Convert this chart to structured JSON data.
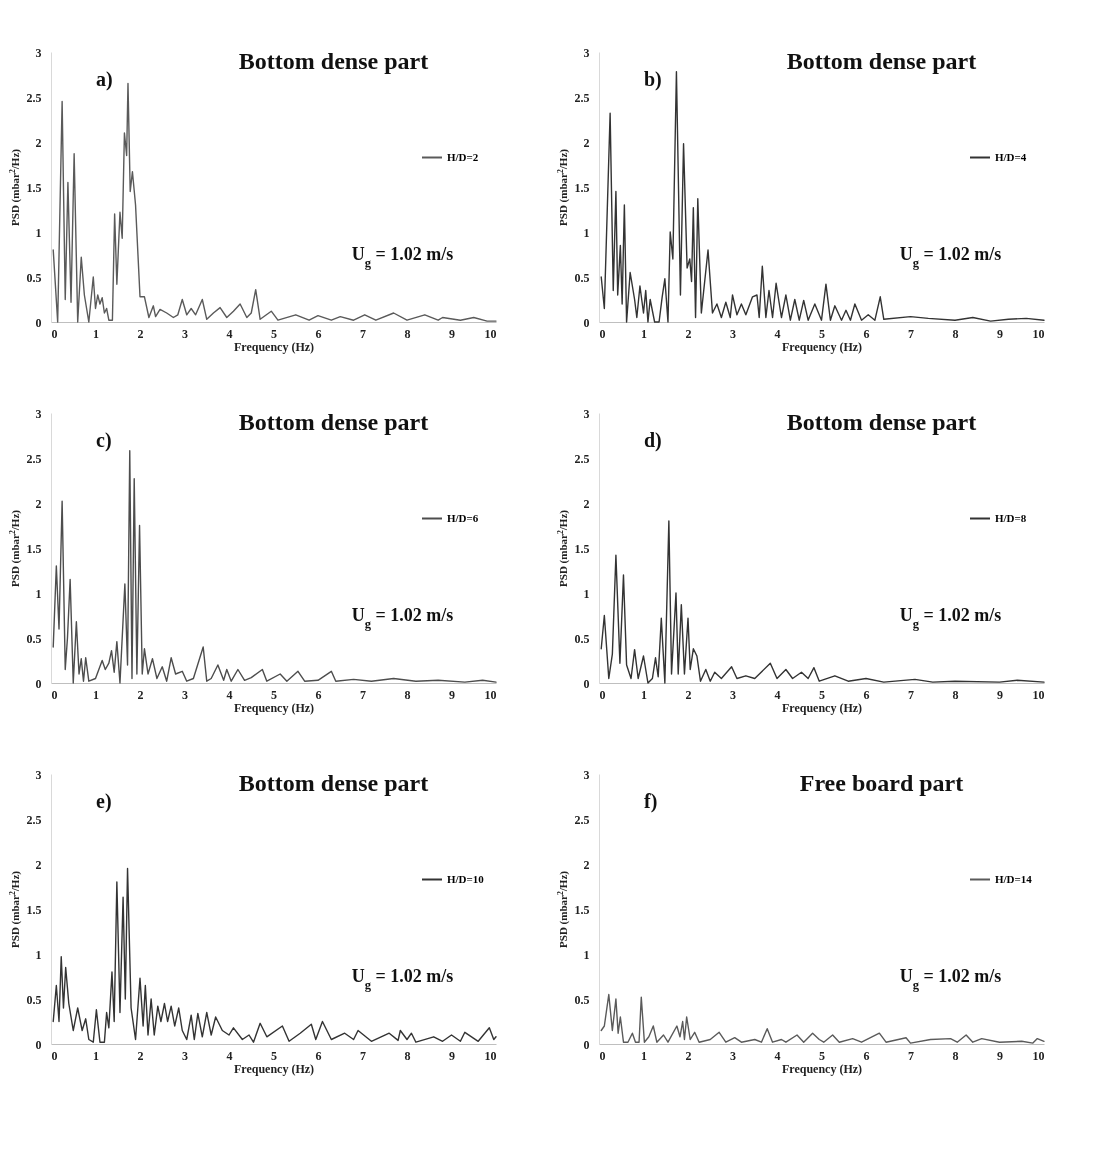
{
  "chart_data": [
    {
      "type": "line",
      "title": "Bottom dense part",
      "annotations": [
        "a)",
        "U$_{g}$ = 1.02 m/s"
      ],
      "xlabel": "Frequency (Hz)",
      "ylabel": "PSD (mbar$^{2}$/Hz)",
      "xlim": [
        0,
        10
      ],
      "xticks": [
        0,
        1,
        2,
        3,
        4,
        5,
        6,
        7,
        8,
        9,
        10
      ],
      "ylim": [
        0,
        3
      ],
      "yticks": [
        0,
        {
          "value": 0.5,
          "label": "0.5"
        },
        1,
        {
          "value": 1.5,
          "label": "1.5"
        },
        2,
        {
          "value": 2.5,
          "label": "2.5"
        },
        3
      ],
      "grid": false,
      "legend": "right",
      "series": [
        {
          "name": "H/D=2",
          "color": "#5a5a5a",
          "x": [
            0.05,
            0.15,
            0.25,
            0.32,
            0.38,
            0.45,
            0.52,
            0.6,
            0.68,
            0.75,
            0.85,
            0.95,
            1.0,
            1.05,
            1.1,
            1.15,
            1.2,
            1.25,
            1.3,
            1.38,
            1.43,
            1.48,
            1.55,
            1.6,
            1.65,
            1.7,
            1.73,
            1.78,
            1.83,
            1.9,
            2.0,
            2.1,
            2.2,
            2.3,
            2.35,
            2.45,
            2.6,
            2.75,
            2.85,
            2.95,
            3.05,
            3.15,
            3.25,
            3.4,
            3.5,
            3.65,
            3.8,
            3.95,
            4.1,
            4.25,
            4.4,
            4.5,
            4.6,
            4.7,
            4.95,
            5.1,
            5.5,
            5.8,
            6.0,
            6.3,
            6.5,
            6.8,
            7.05,
            7.3,
            7.7,
            8.0,
            8.4,
            8.7,
            8.8,
            9.2,
            9.5,
            9.8,
            10
          ],
          "values": [
            0.8,
            0,
            2.45,
            0.25,
            1.55,
            0.22,
            1.87,
            0,
            0.72,
            0.3,
            0,
            0.5,
            0.15,
            0.3,
            0.2,
            0.27,
            0.1,
            0.15,
            0.02,
            0.02,
            1.2,
            0.42,
            1.22,
            0.93,
            2.1,
            1.85,
            2.65,
            1.45,
            1.67,
            1.3,
            0.28,
            0.28,
            0.05,
            0.18,
            0.06,
            0.14,
            0.1,
            0.05,
            0.08,
            0.25,
            0.08,
            0.15,
            0.08,
            0.25,
            0.03,
            0.1,
            0.16,
            0.05,
            0.12,
            0.2,
            0.05,
            0.1,
            0.36,
            0.03,
            0.12,
            0.02,
            0.08,
            0.02,
            0.07,
            0.02,
            0.06,
            0.02,
            0.08,
            0.02,
            0.1,
            0.02,
            0.08,
            0.02,
            0.05,
            0.02,
            0.05,
            0.01,
            0.01
          ]
        }
      ]
    },
    {
      "type": "line",
      "title": "Bottom dense part",
      "annotations": [
        "b)",
        "U$_{g}$ = 1.02 m/s"
      ],
      "xlabel": "Frequency (Hz)",
      "ylabel": "PSD (mbar$^{2}$/Hz)",
      "xlim": [
        0,
        10
      ],
      "xticks": [
        0,
        1,
        2,
        3,
        4,
        5,
        6,
        7,
        8,
        9,
        10
      ],
      "ylim": [
        0,
        3
      ],
      "yticks": [
        0,
        {
          "value": 0.5,
          "label": "0.5"
        },
        1,
        {
          "value": 1.5,
          "label": "1.5"
        },
        2,
        {
          "value": 2.5,
          "label": "2.5"
        },
        3
      ],
      "grid": false,
      "legend": "right",
      "series": [
        {
          "name": "H/D=4",
          "color": "#333333",
          "x": [
            0.05,
            0.12,
            0.25,
            0.32,
            0.38,
            0.42,
            0.48,
            0.52,
            0.57,
            0.62,
            0.7,
            0.8,
            0.85,
            0.92,
            1.0,
            1.05,
            1.1,
            1.15,
            1.25,
            1.35,
            1.42,
            1.48,
            1.55,
            1.6,
            1.66,
            1.74,
            1.83,
            1.9,
            1.98,
            2.04,
            2.08,
            2.12,
            2.17,
            2.22,
            2.3,
            2.45,
            2.55,
            2.65,
            2.75,
            2.85,
            2.95,
            3.0,
            3.1,
            3.2,
            3.3,
            3.45,
            3.55,
            3.6,
            3.67,
            3.75,
            3.82,
            3.9,
            3.98,
            4.1,
            4.2,
            4.3,
            4.4,
            4.5,
            4.6,
            4.7,
            4.85,
            5.0,
            5.1,
            5.2,
            5.3,
            5.45,
            5.55,
            5.65,
            5.75,
            5.9,
            6.05,
            6.2,
            6.32,
            6.4,
            7.0,
            7.4,
            8.0,
            8.4,
            8.8,
            9.2,
            9.6,
            10
          ],
          "values": [
            0.5,
            0.15,
            2.32,
            0.35,
            1.45,
            0.3,
            0.85,
            0.2,
            1.3,
            0,
            0.55,
            0.25,
            0.05,
            0.4,
            0.1,
            0.35,
            0,
            0.25,
            0,
            0,
            0.28,
            0.48,
            0,
            1.0,
            0.7,
            2.78,
            0.3,
            1.98,
            0.6,
            0.7,
            0.45,
            1.27,
            0.05,
            1.37,
            0.1,
            0.8,
            0.1,
            0.2,
            0.05,
            0.22,
            0.05,
            0.3,
            0.08,
            0.2,
            0.08,
            0.28,
            0.3,
            0.05,
            0.62,
            0.05,
            0.35,
            0.05,
            0.43,
            0.05,
            0.3,
            0.02,
            0.25,
            0.02,
            0.24,
            0.02,
            0.2,
            0.02,
            0.42,
            0.02,
            0.18,
            0.02,
            0.13,
            0.02,
            0.2,
            0.02,
            0.08,
            0.02,
            0.28,
            0.03,
            0.06,
            0.04,
            0.02,
            0.05,
            0.01,
            0.03,
            0.04,
            0.02
          ]
        }
      ]
    },
    {
      "type": "line",
      "title": "Bottom dense part",
      "annotations": [
        "c)",
        "U$_{g}$ = 1.02 m/s"
      ],
      "xlabel": "Frequency (Hz)",
      "ylabel": "PSD (mbar$^{2}$/Hz)",
      "xlim": [
        0,
        10
      ],
      "xticks": [
        0,
        1,
        2,
        3,
        4,
        5,
        6,
        7,
        8,
        9,
        10
      ],
      "ylim": [
        0,
        3
      ],
      "yticks": [
        0,
        {
          "value": 0.5,
          "label": "0.5"
        },
        1,
        {
          "value": 1.5,
          "label": "1.5"
        },
        2,
        {
          "value": 2.5,
          "label": "2.5"
        },
        3
      ],
      "grid": false,
      "legend": "right",
      "series": [
        {
          "name": "H/D=6",
          "color": "#4d4d4d",
          "x": [
            0.05,
            0.12,
            0.18,
            0.25,
            0.32,
            0.37,
            0.43,
            0.5,
            0.57,
            0.63,
            0.68,
            0.73,
            0.78,
            0.85,
            1.0,
            1.15,
            1.22,
            1.3,
            1.36,
            1.42,
            1.48,
            1.55,
            1.66,
            1.72,
            1.77,
            1.82,
            1.87,
            1.93,
            1.99,
            2.05,
            2.1,
            2.18,
            2.28,
            2.38,
            2.5,
            2.6,
            2.7,
            2.8,
            2.95,
            3.05,
            3.2,
            3.42,
            3.5,
            3.6,
            3.75,
            3.88,
            3.95,
            4.05,
            4.2,
            4.35,
            4.5,
            4.75,
            4.85,
            5.15,
            5.3,
            5.55,
            5.7,
            6.0,
            6.3,
            6.4,
            6.8,
            7.2,
            7.7,
            8.2,
            8.7,
            9.3,
            9.7,
            10
          ],
          "values": [
            0.4,
            1.3,
            0.6,
            2.02,
            0.15,
            0.5,
            1.15,
            0,
            0.68,
            0.1,
            0.27,
            0.02,
            0.28,
            0.02,
            0.05,
            0.25,
            0.15,
            0.22,
            0.36,
            0.12,
            0.46,
            0,
            1.1,
            0.2,
            2.58,
            0.05,
            2.27,
            0.1,
            1.75,
            0.1,
            0.38,
            0.1,
            0.27,
            0.05,
            0.18,
            0.02,
            0.28,
            0.1,
            0.13,
            0.02,
            0.05,
            0.4,
            0.02,
            0.05,
            0.2,
            0.03,
            0.15,
            0.02,
            0.15,
            0.03,
            0.06,
            0.15,
            0.02,
            0.1,
            0.02,
            0.13,
            0.02,
            0.03,
            0.13,
            0.02,
            0.04,
            0.02,
            0.05,
            0.02,
            0.03,
            0.01,
            0.03,
            0.01
          ]
        }
      ]
    },
    {
      "type": "line",
      "title": "Bottom dense part",
      "annotations": [
        "d)",
        "U$_{g}$ = 1.02 m/s"
      ],
      "xlabel": "Frequency (Hz)",
      "ylabel": "PSD (mbar$^{2}$/Hz)",
      "xlim": [
        0,
        10
      ],
      "xticks": [
        0,
        1,
        2,
        3,
        4,
        5,
        6,
        7,
        8,
        9,
        10
      ],
      "ylim": [
        0,
        3
      ],
      "yticks": [
        0,
        {
          "value": 0.5,
          "label": "0.5"
        },
        1,
        {
          "value": 1.5,
          "label": "1.5"
        },
        2,
        {
          "value": 2.5,
          "label": "2.5"
        },
        3
      ],
      "grid": false,
      "legend": "right",
      "series": [
        {
          "name": "H/D=8",
          "color": "#333333",
          "x": [
            0.05,
            0.12,
            0.22,
            0.3,
            0.38,
            0.47,
            0.55,
            0.62,
            0.72,
            0.8,
            0.88,
            1.0,
            1.1,
            1.2,
            1.27,
            1.33,
            1.4,
            1.48,
            1.57,
            1.63,
            1.73,
            1.78,
            1.85,
            1.92,
            2.0,
            2.05,
            2.12,
            2.2,
            2.28,
            2.4,
            2.5,
            2.6,
            2.75,
            2.98,
            3.1,
            3.3,
            3.5,
            3.85,
            4.0,
            4.2,
            4.35,
            4.55,
            4.7,
            4.83,
            4.95,
            5.3,
            5.6,
            6.0,
            6.4,
            7.1,
            7.5,
            8.0,
            9.0,
            9.4,
            10
          ],
          "values": [
            0.38,
            0.75,
            0.05,
            0.32,
            1.42,
            0.22,
            1.2,
            0.2,
            0.05,
            0.37,
            0.05,
            0.3,
            0,
            0.05,
            0.28,
            0.07,
            0.72,
            0,
            1.8,
            0.1,
            1.0,
            0.1,
            0.87,
            0.1,
            0.72,
            0.15,
            0.38,
            0.3,
            0.02,
            0.15,
            0.02,
            0.12,
            0.05,
            0.18,
            0.05,
            0.08,
            0.05,
            0.22,
            0.05,
            0.15,
            0.05,
            0.12,
            0.05,
            0.17,
            0.02,
            0.08,
            0.02,
            0.05,
            0.01,
            0.04,
            0.01,
            0.02,
            0.01,
            0.03,
            0.01
          ]
        }
      ]
    },
    {
      "type": "line",
      "title": "Bottom dense part",
      "annotations": [
        "e)",
        "U$_{g}$ = 1.02 m/s"
      ],
      "xlabel": "Frequency (Hz)",
      "ylabel": "PSD (mbar$^{2}$/Hz)",
      "xlim": [
        0,
        10
      ],
      "xticks": [
        0,
        1,
        2,
        3,
        4,
        5,
        6,
        7,
        8,
        9,
        10
      ],
      "ylim": [
        0,
        3
      ],
      "yticks": [
        0,
        {
          "value": 0.5,
          "label": "0.5"
        },
        1,
        {
          "value": 1.5,
          "label": "1.5"
        },
        2,
        {
          "value": 2.5,
          "label": "2.5"
        },
        3
      ],
      "grid": false,
      "legend": "right",
      "series": [
        {
          "name": "H/D=10",
          "color": "#333333",
          "x": [
            0.05,
            0.12,
            0.18,
            0.23,
            0.28,
            0.33,
            0.4,
            0.5,
            0.6,
            0.7,
            0.78,
            0.85,
            0.95,
            1.02,
            1.1,
            1.2,
            1.25,
            1.3,
            1.37,
            1.42,
            1.48,
            1.55,
            1.62,
            1.67,
            1.72,
            1.8,
            1.9,
            2.0,
            2.07,
            2.12,
            2.18,
            2.25,
            2.32,
            2.4,
            2.47,
            2.55,
            2.62,
            2.7,
            2.78,
            2.87,
            2.95,
            3.05,
            3.15,
            3.22,
            3.3,
            3.4,
            3.5,
            3.6,
            3.7,
            3.85,
            4.0,
            4.1,
            4.3,
            4.45,
            4.55,
            4.7,
            4.85,
            5.2,
            5.35,
            5.6,
            5.85,
            5.95,
            6.1,
            6.3,
            6.6,
            6.8,
            6.9,
            7.2,
            7.6,
            7.8,
            7.85,
            8.0,
            8.1,
            8.2,
            8.6,
            8.8,
            9.0,
            9.2,
            9.3,
            9.6,
            9.85,
            9.95,
            10
          ],
          "values": [
            0.25,
            0.65,
            0.25,
            0.97,
            0.4,
            0.85,
            0.45,
            0.15,
            0.4,
            0.15,
            0.28,
            0.05,
            0.02,
            0.38,
            0.02,
            0.02,
            0.35,
            0.18,
            0.8,
            0.25,
            1.8,
            0.35,
            1.63,
            0.5,
            1.95,
            0.4,
            0.05,
            0.73,
            0.2,
            0.65,
            0.1,
            0.5,
            0.1,
            0.42,
            0.25,
            0.45,
            0.25,
            0.42,
            0.2,
            0.4,
            0.15,
            0.05,
            0.32,
            0.05,
            0.34,
            0.08,
            0.35,
            0.1,
            0.3,
            0.15,
            0.1,
            0.18,
            0.05,
            0.1,
            0.02,
            0.23,
            0.08,
            0.2,
            0.03,
            0.12,
            0.22,
            0.05,
            0.25,
            0.05,
            0.12,
            0.05,
            0.15,
            0.03,
            0.12,
            0.04,
            0.15,
            0.05,
            0.12,
            0.02,
            0.08,
            0.03,
            0.1,
            0.03,
            0.13,
            0.03,
            0.18,
            0.05,
            0.08
          ]
        }
      ]
    },
    {
      "type": "line",
      "title": "Free board part",
      "annotations": [
        "f)",
        "U$_{g}$ = 1.02 m/s"
      ],
      "xlabel": "Frequency (Hz)",
      "ylabel": "PSD (mbar$^{2}$/Hz)",
      "xlim": [
        0,
        10
      ],
      "xticks": [
        0,
        1,
        2,
        3,
        4,
        5,
        6,
        7,
        8,
        9,
        10
      ],
      "ylim": [
        0,
        3
      ],
      "yticks": [
        0,
        {
          "value": 0.5,
          "label": "0.5"
        },
        1,
        {
          "value": 1.5,
          "label": "1.5"
        },
        2,
        {
          "value": 2.5,
          "label": "2.5"
        },
        3
      ],
      "grid": false,
      "legend": "right",
      "series": [
        {
          "name": "H/D=14",
          "color": "#5a5a5a",
          "x": [
            0.05,
            0.12,
            0.22,
            0.3,
            0.38,
            0.43,
            0.48,
            0.55,
            0.65,
            0.75,
            0.82,
            0.9,
            0.95,
            1.02,
            1.12,
            1.22,
            1.3,
            1.45,
            1.55,
            1.75,
            1.82,
            1.88,
            1.92,
            1.97,
            2.05,
            2.15,
            2.25,
            2.5,
            2.7,
            2.85,
            3.05,
            3.2,
            3.5,
            3.65,
            3.78,
            3.9,
            4.1,
            4.2,
            4.45,
            4.6,
            4.8,
            4.95,
            5.05,
            5.25,
            5.4,
            5.7,
            5.9,
            6.3,
            6.45,
            6.9,
            7.0,
            7.45,
            7.9,
            8.05,
            8.25,
            8.4,
            8.6,
            9.0,
            9.5,
            9.75,
            9.85,
            10
          ],
          "values": [
            0.15,
            0.2,
            0.55,
            0.15,
            0.5,
            0.12,
            0.3,
            0.02,
            0.02,
            0.12,
            0.02,
            0.02,
            0.52,
            0.02,
            0.08,
            0.2,
            0.02,
            0.1,
            0.02,
            0.2,
            0.08,
            0.25,
            0.05,
            0.3,
            0.05,
            0.13,
            0.02,
            0.05,
            0.13,
            0.02,
            0.07,
            0.02,
            0.05,
            0.02,
            0.17,
            0.02,
            0.05,
            0.02,
            0.1,
            0.02,
            0.12,
            0.05,
            0.02,
            0.1,
            0.02,
            0.06,
            0.02,
            0.12,
            0.02,
            0.07,
            0.01,
            0.05,
            0.06,
            0.02,
            0.1,
            0.02,
            0.06,
            0.02,
            0.03,
            0.01,
            0.06,
            0.03
          ]
        }
      ]
    }
  ]
}
